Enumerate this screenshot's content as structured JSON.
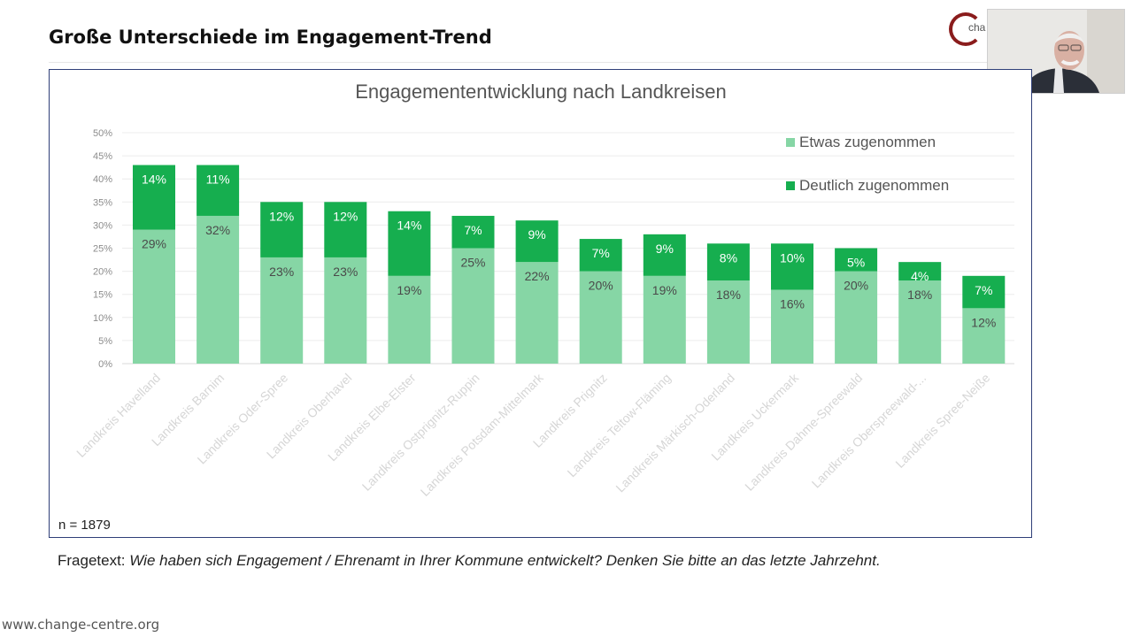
{
  "slide": {
    "title": "Große Unterschiede im Engagement-Trend",
    "logo_text": "cha",
    "sample_size": "n = 1879",
    "question_label": "Fragetext:",
    "question_text": "Wie haben sich Engagement / Ehrenamt in Ihrer Kommune entwickelt? Denken Sie bitte an das letzte Jahrzehnt.",
    "footer_url": "www.change-centre.org"
  },
  "colors": {
    "light": "#86d6a5",
    "dark": "#16ae4f",
    "frame": "#2f3f78"
  },
  "chart_data": {
    "type": "bar",
    "stacked": true,
    "title": "Engagemententwicklung nach Landkreisen",
    "categories": [
      "Landkreis Havelland",
      "Landkreis Barnim",
      "Landkreis Oder-Spree",
      "Landkreis Oberhavel",
      "Landkreis Elbe-Elster",
      "Landkreis Ostprignitz-Ruppin",
      "Landkreis Potsdam-Mittelmark",
      "Landkreis Prignitz",
      "Landkreis Teltow-Fläming",
      "Landkreis Märkisch-Oderland",
      "Landkreis Uckermark",
      "Landkreis Dahme-Spreewald",
      "Landkreis Oberspreewald-...",
      "Landkreis Spree-Neiße"
    ],
    "series": [
      {
        "name": "Etwas zugenommen",
        "values": [
          29,
          32,
          23,
          23,
          19,
          25,
          22,
          20,
          19,
          18,
          16,
          20,
          18,
          12
        ],
        "labels": [
          "29%",
          "32%",
          "23%",
          "23%",
          "19%",
          "25%",
          "22%",
          "20%",
          "19%",
          "18%",
          "16%",
          "20%",
          "18%",
          "12%"
        ]
      },
      {
        "name": "Deutlich zugenommen",
        "values": [
          14,
          11,
          12,
          12,
          14,
          7,
          9,
          7,
          9,
          8,
          10,
          5,
          4,
          7
        ],
        "labels": [
          "14%",
          "11%",
          "12%",
          "12%",
          "14%",
          "7%",
          "9%",
          "7%",
          "9%",
          "8%",
          "10%",
          "5%",
          "4%",
          "7%"
        ]
      }
    ],
    "ylim": [
      0,
      50
    ],
    "yticks": [
      "0%",
      "5%",
      "10%",
      "15%",
      "20%",
      "25%",
      "30%",
      "35%",
      "40%",
      "45%",
      "50%"
    ],
    "grid": true,
    "legend": "top-right",
    "xlabel": "",
    "ylabel": ""
  }
}
